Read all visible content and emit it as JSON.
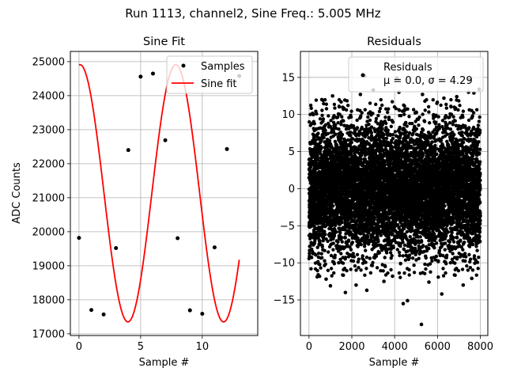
{
  "figure": {
    "suptitle": "Run 1113, channel2, Sine Freq.: 5.005 MHz"
  },
  "chart_data": [
    {
      "type": "line",
      "title": "Sine Fit",
      "xlabel": "Sample #",
      "ylabel": "ADC Counts",
      "xlim": [
        -0.7,
        14.5
      ],
      "ylim": [
        16950,
        25300
      ],
      "xticks": [
        0,
        5,
        10
      ],
      "yticks": [
        17000,
        18000,
        19000,
        20000,
        21000,
        22000,
        23000,
        24000,
        25000
      ],
      "grid": true,
      "legend_position": "top-right",
      "series": [
        {
          "name": "Samples",
          "style": "points",
          "color": "#000000",
          "x": [
            0,
            1,
            2,
            3,
            4,
            5,
            6,
            7,
            8,
            9,
            10,
            11,
            12,
            13
          ],
          "y": [
            19820,
            17700,
            17570,
            19520,
            22400,
            24560,
            24650,
            22690,
            19810,
            17690,
            17590,
            19540,
            22430,
            24580
          ]
        },
        {
          "name": "Sine fit",
          "style": "line",
          "color": "#ff0000",
          "function": {
            "offset": 21130,
            "amplitude": 3780,
            "period": 7.76,
            "phase": 0.09,
            "x_range": [
              0,
              13
            ]
          }
        }
      ]
    },
    {
      "type": "scatter",
      "title": "Residuals",
      "xlabel": "Sample #",
      "xlim": [
        -400,
        8350
      ],
      "ylim": [
        -19.8,
        18.5
      ],
      "xticks": [
        0,
        2000,
        4000,
        6000,
        8000
      ],
      "yticks": [
        -15,
        -10,
        -5,
        0,
        5,
        10,
        15
      ],
      "grid": true,
      "legend_position": "top-right",
      "series": [
        {
          "name": "Residuals",
          "color": "#000000",
          "stats_text": "μ = 0.0, σ = 4.29",
          "summary": {
            "mean": 0.0,
            "std": 4.29,
            "n": 8000,
            "x_range": [
              0,
              7999
            ]
          },
          "points": [
            [
              2600,
              15.2
            ],
            [
              4400,
              -15.5
            ],
            [
              4600,
              -15.1
            ],
            [
              5250,
              -18.3
            ],
            [
              6200,
              -14.2
            ],
            [
              1700,
              -14.0
            ],
            [
              1000,
              -13.1
            ],
            [
              2200,
              -13.0
            ],
            [
              2700,
              -13.7
            ],
            [
              4100,
              14.9
            ],
            [
              7500,
              14.7
            ],
            [
              5700,
              14.4
            ],
            [
              7450,
              13.0
            ],
            [
              7700,
              12.9
            ],
            [
              3000,
              13.3
            ],
            [
              4200,
              13.0
            ],
            [
              2400,
              12.7
            ],
            [
              1100,
              12.5
            ],
            [
              600,
              12.0
            ],
            [
              5300,
              12.7
            ],
            [
              6300,
              12.2
            ],
            [
              7200,
              -13.0
            ],
            [
              7950,
              13.4
            ],
            [
              3500,
              -12.5
            ],
            [
              800,
              -12.2
            ],
            [
              5600,
              -12.6
            ],
            [
              6900,
              12.4
            ],
            [
              3900,
              -11.8
            ],
            [
              1500,
              11.7
            ],
            [
              7600,
              -12.1
            ]
          ]
        }
      ]
    }
  ]
}
